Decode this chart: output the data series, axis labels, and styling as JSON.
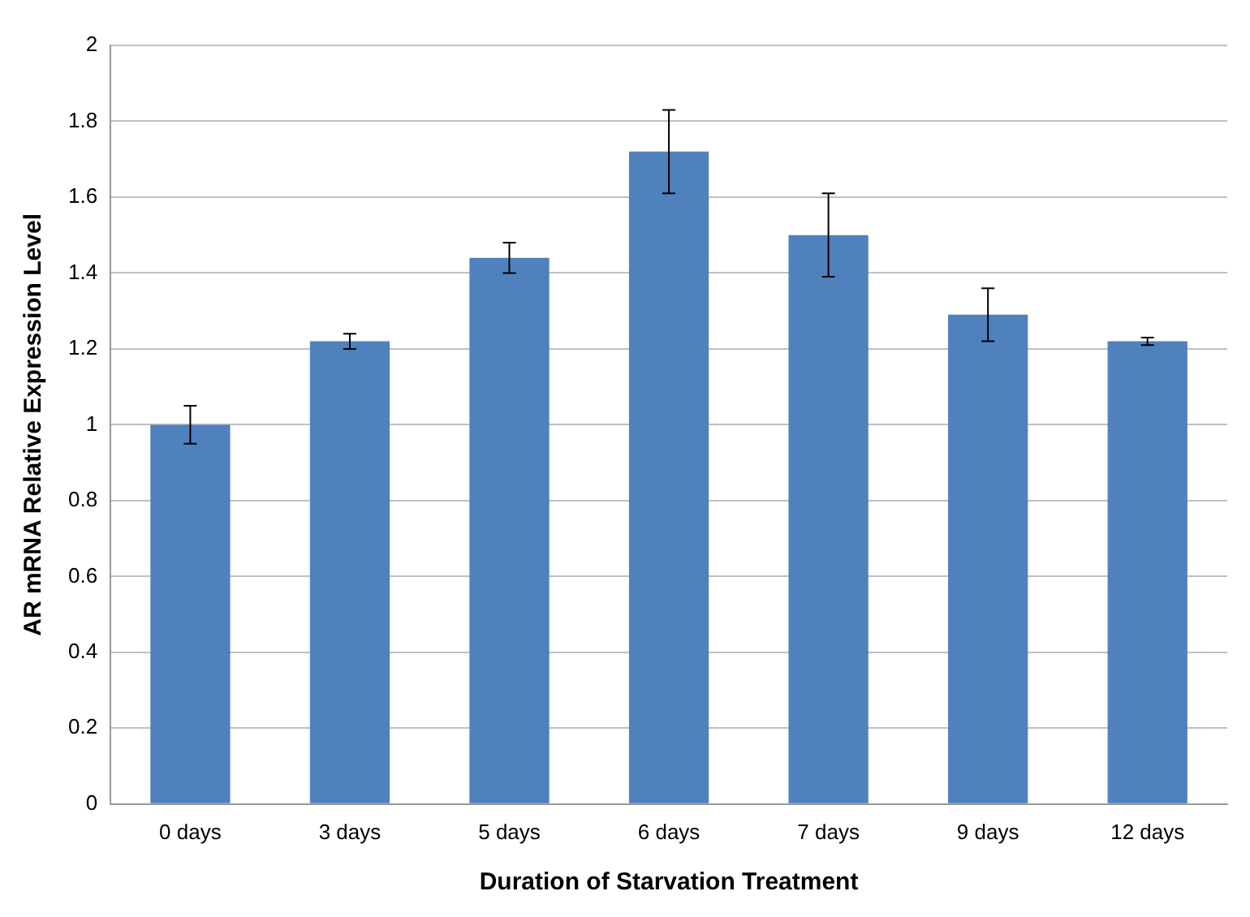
{
  "chart_data": {
    "type": "bar",
    "xlabel": "Duration of Starvation Treatment",
    "ylabel": "AR mRNA Relative Expression Level",
    "categories": [
      "0 days",
      "3 days",
      "5 days",
      "6 days",
      "7 days",
      "9 days",
      "12 days"
    ],
    "values": [
      1.0,
      1.22,
      1.44,
      1.72,
      1.5,
      1.29,
      1.22
    ],
    "errors": [
      0.05,
      0.02,
      0.04,
      0.11,
      0.11,
      0.07,
      0.01
    ],
    "color": "#4f81bd",
    "ylim": [
      0,
      2
    ],
    "yticks": [
      0,
      0.2,
      0.4,
      0.6,
      0.8,
      1,
      1.2,
      1.4,
      1.6,
      1.8,
      2
    ],
    "grid": "y"
  }
}
